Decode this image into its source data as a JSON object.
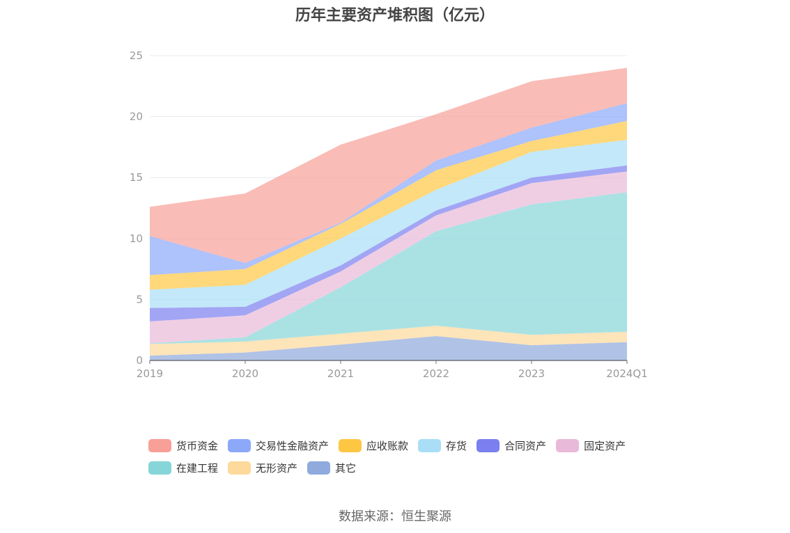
{
  "chart_data": {
    "type": "area",
    "stacked": true,
    "title": "历年主要资产堆积图（亿元）",
    "categories": [
      "2019",
      "2020",
      "2021",
      "2022",
      "2023",
      "2024Q1"
    ],
    "ylim": [
      0,
      25
    ],
    "yticks": [
      0,
      5,
      10,
      15,
      20,
      25
    ],
    "grid": true,
    "legend_position": "bottom",
    "series": [
      {
        "name": "其它",
        "color": "#8faadc",
        "values": [
          0.4,
          0.65,
          1.3,
          2.0,
          1.25,
          1.5
        ]
      },
      {
        "name": "无形资产",
        "color": "#fdd99b",
        "values": [
          0.95,
          0.9,
          0.9,
          0.85,
          0.85,
          0.85
        ]
      },
      {
        "name": "在建工程",
        "color": "#86d5d8",
        "values": [
          0.05,
          0.35,
          3.8,
          7.75,
          10.7,
          11.45
        ]
      },
      {
        "name": "固定资产",
        "color": "#e8b9d8",
        "values": [
          1.8,
          1.8,
          1.3,
          1.3,
          1.75,
          1.7
        ]
      },
      {
        "name": "合同资产",
        "color": "#7b7ff0",
        "values": [
          1.1,
          0.7,
          0.5,
          0.4,
          0.45,
          0.5
        ]
      },
      {
        "name": "存货",
        "color": "#a9def6",
        "values": [
          1.5,
          1.8,
          2.2,
          1.7,
          2.1,
          2.1
        ]
      },
      {
        "name": "应收账款",
        "color": "#fdc743",
        "values": [
          1.2,
          1.3,
          1.2,
          1.6,
          0.9,
          1.55
        ]
      },
      {
        "name": "交易性金融资产",
        "color": "#8ba8f9",
        "values": [
          3.2,
          0.5,
          0.1,
          0.8,
          1.1,
          1.45
        ]
      },
      {
        "name": "货币资金",
        "color": "#f89f97",
        "values": [
          2.4,
          5.7,
          6.4,
          3.8,
          3.8,
          2.9
        ]
      }
    ]
  },
  "legend_order": [
    "货币资金",
    "交易性金融资产",
    "应收账款",
    "存货",
    "合同资产",
    "固定资产",
    "在建工程",
    "无形资产",
    "其它"
  ],
  "source_text": "数据来源：恒生聚源"
}
